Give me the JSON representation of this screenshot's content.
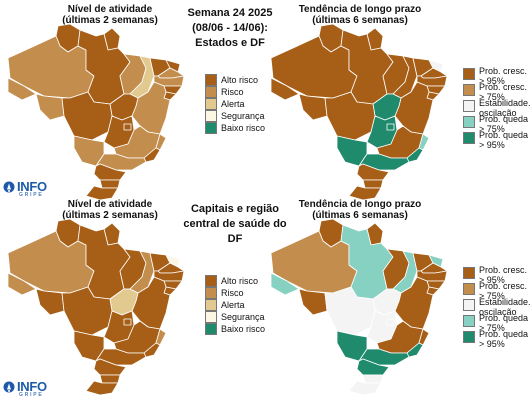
{
  "colors": {
    "alto_risco": "#a75f17",
    "risco": "#c38e4d",
    "alerta": "#e2c98f",
    "seguranca": "#fbf7e4",
    "baixo_risco": "#1f8a6c",
    "prob_cresc_95": "#a75f17",
    "prob_cresc_75": "#c38e4d",
    "estabilidade": "#f4f4f4",
    "prob_queda_75": "#86d1c2",
    "prob_queda_95": "#1f8a6c",
    "border": "#ffffff",
    "logo": "#1d5aa8"
  },
  "top": {
    "left_title": [
      "Nível de atividade",
      "(últimas 2 semanas)"
    ],
    "center_title": [
      "Semana 24 2025",
      "(08/06 - 14/06):",
      "Estados e DF"
    ],
    "right_title": [
      "Tendência de longo prazo",
      "(últimas 6 semanas)"
    ]
  },
  "bottom": {
    "left_title": [
      "Nível de atividade",
      "(últimas 2 semanas)"
    ],
    "center_title": [
      "Capitais e região",
      "central de saúde do DF"
    ],
    "right_title": [
      "Tendência de longo prazo",
      "(últimas 6 semanas)"
    ]
  },
  "legend_risk": [
    {
      "label": "Alto risco",
      "color": "#a75f17"
    },
    {
      "label": "Risco",
      "color": "#c38e4d"
    },
    {
      "label": "Alerta",
      "color": "#e2c98f"
    },
    {
      "label": "Segurança",
      "color": "#fbf7e4"
    },
    {
      "label": "Baixo risco",
      "color": "#1f8a6c"
    }
  ],
  "legend_trend": [
    {
      "lines": [
        "Prob. cresc.",
        "> 95%"
      ],
      "color": "#a75f17"
    },
    {
      "lines": [
        "Prob. cresc.",
        "> 75%"
      ],
      "color": "#c38e4d"
    },
    {
      "lines": [
        "Estabilidade./",
        "oscilação"
      ],
      "color": "#f4f4f4"
    },
    {
      "lines": [
        "Prob. queda",
        "> 75%"
      ],
      "color": "#86d1c2"
    },
    {
      "lines": [
        "Prob. queda",
        "> 95%"
      ],
      "color": "#1f8a6c"
    }
  ],
  "logo": {
    "name": "INFO",
    "sub": "GRIPE"
  },
  "maps": {
    "top_activity": {
      "AM": "risco",
      "RR": "alto_risco",
      "AP": "alto_risco",
      "PA": "alto_risco",
      "AC": "risco",
      "RO": "risco",
      "TO": "alto_risco",
      "MA": "risco",
      "PI": "alerta",
      "CE": "alto_risco",
      "RN": "alto_risco",
      "PB": "risco",
      "PE": "risco",
      "AL": "alto_risco",
      "SE": "alto_risco",
      "BA": "risco",
      "MT": "alto_risco",
      "GO": "alto_risco",
      "DF": "alto_risco",
      "MS": "risco",
      "MG": "risco",
      "ES": "risco",
      "RJ": "alto_risco",
      "SP": "risco",
      "PR": "alto_risco",
      "SC": "alto_risco",
      "RS": "alto_risco"
    },
    "top_trend": {
      "AM": "prob_cresc_95",
      "RR": "prob_cresc_95",
      "AP": "prob_cresc_95",
      "PA": "prob_cresc_95",
      "AC": "prob_cresc_95",
      "RO": "prob_cresc_95",
      "TO": "prob_queda_95",
      "MA": "prob_cresc_95",
      "PI": "prob_cresc_95",
      "CE": "prob_cresc_95",
      "RN": "estabilidade",
      "PB": "prob_cresc_95",
      "PE": "prob_cresc_95",
      "AL": "prob_cresc_95",
      "SE": "prob_cresc_95",
      "BA": "prob_cresc_95",
      "MT": "prob_cresc_95",
      "GO": "prob_queda_95",
      "DF": "prob_queda_95",
      "MS": "prob_queda_95",
      "MG": "prob_cresc_95",
      "ES": "prob_queda_75",
      "RJ": "prob_queda_95",
      "SP": "prob_queda_95",
      "PR": "prob_cresc_95",
      "SC": "prob_cresc_95",
      "RS": "prob_cresc_95"
    },
    "bottom_activity": {
      "AM": "risco",
      "RR": "alto_risco",
      "AP": "alto_risco",
      "PA": "alto_risco",
      "AC": "risco",
      "RO": "alto_risco",
      "TO": "alerta",
      "MA": "alto_risco",
      "PI": "risco",
      "CE": "alto_risco",
      "RN": "seguranca",
      "PB": "alto_risco",
      "PE": "alto_risco",
      "AL": "alto_risco",
      "SE": "alto_risco",
      "BA": "alto_risco",
      "MT": "alto_risco",
      "GO": "alto_risco",
      "DF": "alto_risco",
      "MS": "alto_risco",
      "MG": "alto_risco",
      "ES": "risco",
      "RJ": "alto_risco",
      "SP": "alto_risco",
      "PR": "alto_risco",
      "SC": "alto_risco",
      "RS": "alto_risco"
    },
    "bottom_trend": {
      "AM": "prob_cresc_75",
      "RR": "prob_cresc_95",
      "AP": "prob_cresc_95",
      "PA": "prob_queda_75",
      "AC": "prob_queda_75",
      "RO": "prob_cresc_95",
      "TO": "estabilidade",
      "MA": "prob_cresc_95",
      "PI": "prob_queda_75",
      "CE": "prob_cresc_95",
      "RN": "prob_queda_75",
      "PB": "prob_cresc_95",
      "PE": "prob_cresc_95",
      "AL": "prob_cresc_95",
      "SE": "prob_cresc_95",
      "BA": "prob_cresc_95",
      "MT": "estabilidade",
      "GO": "estabilidade",
      "DF": "estabilidade",
      "MS": "prob_queda_95",
      "MG": "prob_cresc_95",
      "ES": "prob_cresc_95",
      "RJ": "prob_queda_95",
      "SP": "prob_queda_95",
      "PR": "prob_queda_95",
      "SC": "estabilidade",
      "RS": "estabilidade"
    }
  }
}
